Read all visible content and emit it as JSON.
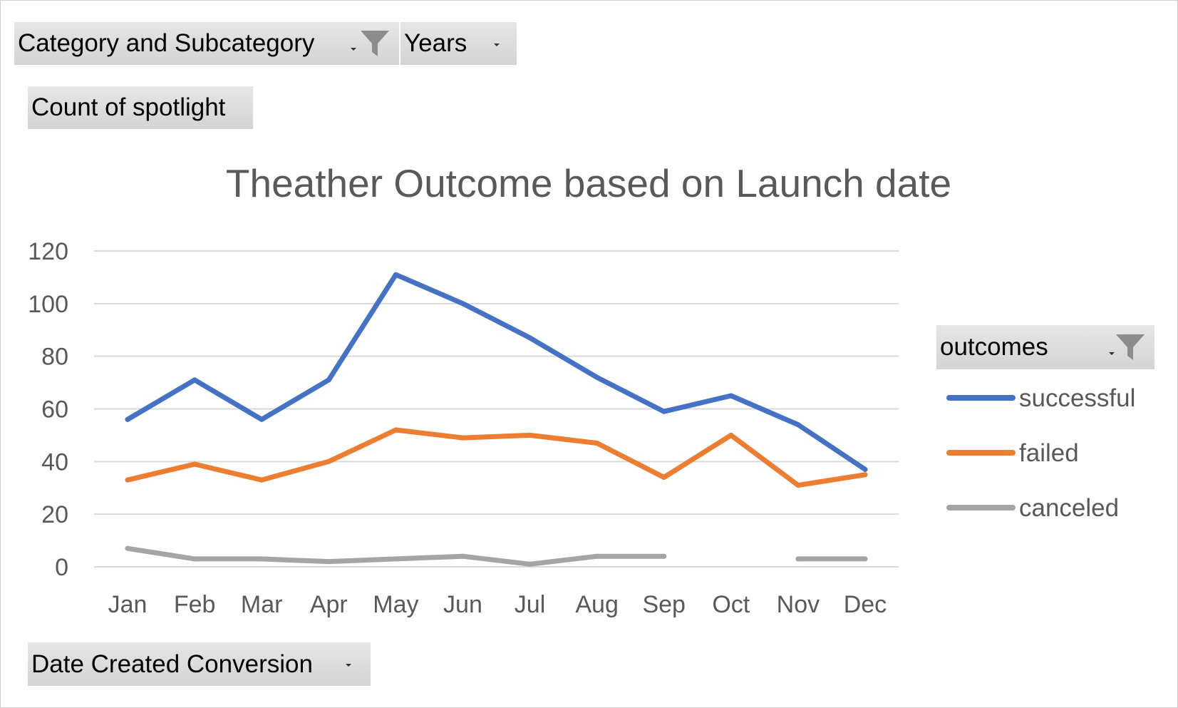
{
  "pivot_fields": {
    "filter_field": "Category and Subcategory",
    "column_field": "Years",
    "value_field": "Count of spotlight",
    "axis_field": "Date Created Conversion",
    "legend_field": "outcomes"
  },
  "colors": {
    "successful": "#4472C4",
    "failed": "#ED7D31",
    "canceled": "#A5A5A5",
    "gridline": "#D9D9D9",
    "axis_text": "#595959",
    "title_text": "#595959"
  },
  "chart_data": {
    "type": "line",
    "title": "Theather Outcome based on Launch date",
    "xlabel": "",
    "ylabel": "",
    "categories": [
      "Jan",
      "Feb",
      "Mar",
      "Apr",
      "May",
      "Jun",
      "Jul",
      "Aug",
      "Sep",
      "Oct",
      "Nov",
      "Dec"
    ],
    "ylim": [
      0,
      120
    ],
    "yticks": [
      0,
      20,
      40,
      60,
      80,
      100,
      120
    ],
    "grid": true,
    "legend_position": "right",
    "series": [
      {
        "name": "successful",
        "values": [
          56,
          71,
          56,
          71,
          111,
          100,
          87,
          72,
          59,
          65,
          54,
          37
        ]
      },
      {
        "name": "failed",
        "values": [
          33,
          39,
          33,
          40,
          52,
          49,
          50,
          47,
          34,
          50,
          31,
          35
        ]
      },
      {
        "name": "canceled",
        "values": [
          7,
          3,
          3,
          2,
          3,
          4,
          1,
          4,
          4,
          null,
          3,
          3
        ]
      }
    ]
  }
}
